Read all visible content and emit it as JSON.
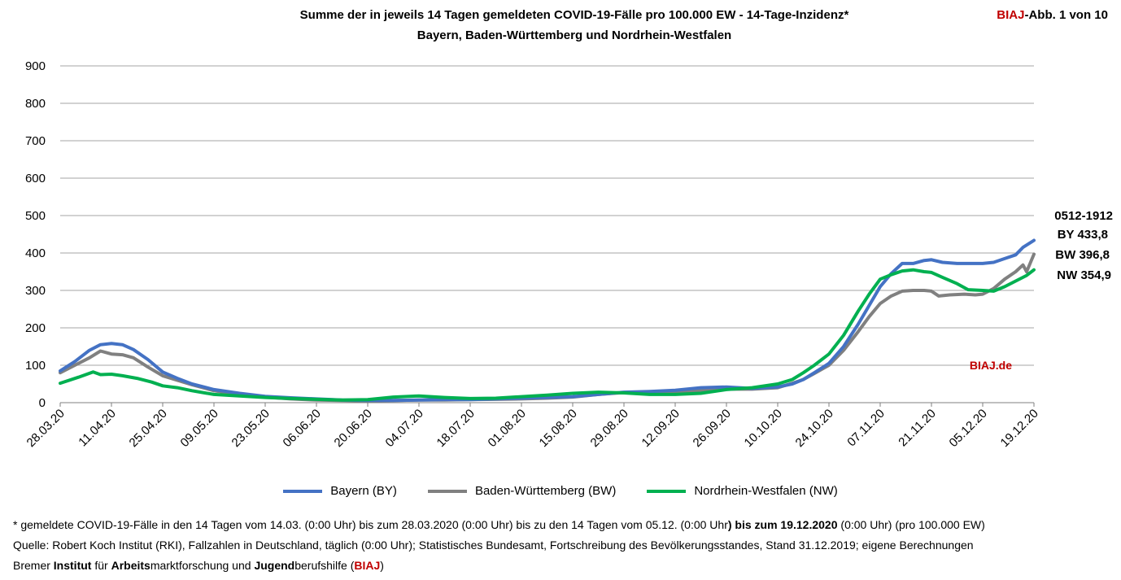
{
  "header": {
    "title_line1": "Summe der in jeweils 14 Tagen gemeldeten COVID-19-Fälle pro 100.000 EW - 14-Tage-Inzidenz*",
    "title_line2": "Bayern, Baden-Württemberg und Nordrhein-Westfalen",
    "fig_brand": "BIAJ",
    "fig_rest": "-Abb. 1 von 10"
  },
  "annotations": {
    "period": "0512-1912",
    "by": "BY 433,8",
    "bw": "BW 396,8",
    "nw": "NW 354,9",
    "watermark": "BIAJ.de"
  },
  "footer": {
    "line1_a": "* gemeldete COVID-19-Fälle in den 14 Tagen vom 14.03. (0:00 Uhr) bis zum 28.03.2020 (0:00 Uhr) bis zu den 14 Tagen vom 05.12. (0:00 Uhr",
    "line1_b": ") bis zum 19.12.2020",
    "line1_c": " (0:00 Uhr) (pro 100.000 EW)",
    "line2": "Quelle: Robert Koch Institut (RKI), Fallzahlen in Deutschland, täglich (0:00 Uhr); Statistisches Bundesamt, Fortschreibung des Bevölkerungsstandes, Stand 31.12.2019; eigene Berechnungen",
    "line3_p1": "Bremer ",
    "line3_b1": "Institut",
    "line3_p2": " für ",
    "line3_b2": "Arbeits",
    "line3_p3": "marktforschung und ",
    "line3_b3": "Jugend",
    "line3_p4": "berufshilfe (",
    "line3_brand": "BIAJ",
    "line3_p5": ")"
  },
  "chart_data": {
    "type": "line",
    "title": "Summe der in jeweils 14 Tagen gemeldeten COVID-19-Fälle pro 100.000 EW - 14-Tage-Inzidenz*",
    "xlabel": "",
    "ylabel": "",
    "ylim": [
      0,
      900
    ],
    "yticks": [
      0,
      100,
      200,
      300,
      400,
      500,
      600,
      700,
      800,
      900
    ],
    "grid": true,
    "legend_position": "bottom",
    "x_start": "28.03.20",
    "x_end": "19.12.20",
    "x_ticks": [
      "28.03.20",
      "11.04.20",
      "25.04.20",
      "09.05.20",
      "23.05.20",
      "06.06.20",
      "20.06.20",
      "04.07.20",
      "18.07.20",
      "01.08.20",
      "15.08.20",
      "29.08.20",
      "12.09.20",
      "26.09.20",
      "10.10.20",
      "24.10.20",
      "07.11.20",
      "21.11.20",
      "05.12.20",
      "19.12.20"
    ],
    "series": [
      {
        "name": "Bayern (BY)",
        "color": "#4472c4",
        "points": [
          [
            "28.03.20",
            85
          ],
          [
            "01.04.20",
            110
          ],
          [
            "05.04.20",
            140
          ],
          [
            "08.04.20",
            155
          ],
          [
            "11.04.20",
            158
          ],
          [
            "14.04.20",
            155
          ],
          [
            "17.04.20",
            142
          ],
          [
            "21.04.20",
            115
          ],
          [
            "25.04.20",
            82
          ],
          [
            "29.04.20",
            65
          ],
          [
            "03.05.20",
            50
          ],
          [
            "09.05.20",
            35
          ],
          [
            "16.05.20",
            25
          ],
          [
            "23.05.20",
            17
          ],
          [
            "30.05.20",
            13
          ],
          [
            "06.06.20",
            10
          ],
          [
            "13.06.20",
            7
          ],
          [
            "20.06.20",
            6
          ],
          [
            "27.06.20",
            6
          ],
          [
            "04.07.20",
            7
          ],
          [
            "11.07.20",
            8
          ],
          [
            "18.07.20",
            8
          ],
          [
            "25.07.20",
            10
          ],
          [
            "01.08.20",
            12
          ],
          [
            "08.08.20",
            14
          ],
          [
            "15.08.20",
            16
          ],
          [
            "22.08.20",
            22
          ],
          [
            "29.08.20",
            28
          ],
          [
            "05.09.20",
            30
          ],
          [
            "12.09.20",
            33
          ],
          [
            "19.09.20",
            40
          ],
          [
            "26.09.20",
            42
          ],
          [
            "03.10.20",
            38
          ],
          [
            "10.10.20",
            42
          ],
          [
            "14.10.20",
            50
          ],
          [
            "17.10.20",
            62
          ],
          [
            "20.10.20",
            80
          ],
          [
            "24.10.20",
            105
          ],
          [
            "28.10.20",
            150
          ],
          [
            "01.11.20",
            210
          ],
          [
            "04.11.20",
            260
          ],
          [
            "07.11.20",
            310
          ],
          [
            "10.11.20",
            345
          ],
          [
            "13.11.20",
            372
          ],
          [
            "16.11.20",
            372
          ],
          [
            "19.11.20",
            380
          ],
          [
            "21.11.20",
            382
          ],
          [
            "24.11.20",
            375
          ],
          [
            "28.11.20",
            372
          ],
          [
            "01.12.20",
            372
          ],
          [
            "05.12.20",
            372
          ],
          [
            "08.12.20",
            375
          ],
          [
            "11.12.20",
            385
          ],
          [
            "14.12.20",
            395
          ],
          [
            "16.12.20",
            415
          ],
          [
            "19.12.20",
            433.8
          ]
        ]
      },
      {
        "name": "Baden-Württemberg (BW)",
        "color": "#808080",
        "points": [
          [
            "28.03.20",
            80
          ],
          [
            "01.04.20",
            100
          ],
          [
            "05.04.20",
            120
          ],
          [
            "08.04.20",
            138
          ],
          [
            "11.04.20",
            130
          ],
          [
            "14.04.20",
            128
          ],
          [
            "17.04.20",
            120
          ],
          [
            "21.04.20",
            95
          ],
          [
            "25.04.20",
            72
          ],
          [
            "29.04.20",
            60
          ],
          [
            "03.05.20",
            48
          ],
          [
            "09.05.20",
            32
          ],
          [
            "16.05.20",
            22
          ],
          [
            "23.05.20",
            15
          ],
          [
            "30.05.20",
            10
          ],
          [
            "06.06.20",
            7
          ],
          [
            "13.06.20",
            6
          ],
          [
            "20.06.20",
            5
          ],
          [
            "27.06.20",
            6
          ],
          [
            "04.07.20",
            7
          ],
          [
            "11.07.20",
            7
          ],
          [
            "18.07.20",
            8
          ],
          [
            "25.07.20",
            9
          ],
          [
            "01.08.20",
            10
          ],
          [
            "08.08.20",
            12
          ],
          [
            "15.08.20",
            15
          ],
          [
            "22.08.20",
            22
          ],
          [
            "29.08.20",
            27
          ],
          [
            "05.09.20",
            29
          ],
          [
            "12.09.20",
            30
          ],
          [
            "19.09.20",
            32
          ],
          [
            "26.09.20",
            36
          ],
          [
            "03.10.20",
            36
          ],
          [
            "10.10.20",
            40
          ],
          [
            "14.10.20",
            52
          ],
          [
            "17.10.20",
            62
          ],
          [
            "20.10.20",
            78
          ],
          [
            "24.10.20",
            100
          ],
          [
            "28.10.20",
            140
          ],
          [
            "01.11.20",
            190
          ],
          [
            "04.11.20",
            230
          ],
          [
            "07.11.20",
            265
          ],
          [
            "10.11.20",
            285
          ],
          [
            "13.11.20",
            298
          ],
          [
            "16.11.20",
            300
          ],
          [
            "19.11.20",
            300
          ],
          [
            "21.11.20",
            298
          ],
          [
            "23.11.20",
            285
          ],
          [
            "26.11.20",
            288
          ],
          [
            "30.11.20",
            290
          ],
          [
            "03.12.20",
            288
          ],
          [
            "05.12.20",
            290
          ],
          [
            "08.12.20",
            305
          ],
          [
            "11.12.20",
            330
          ],
          [
            "14.12.20",
            350
          ],
          [
            "16.12.20",
            368
          ],
          [
            "17.12.20",
            350
          ],
          [
            "19.12.20",
            396.8
          ]
        ]
      },
      {
        "name": "Nordrhein-Westfalen (NW)",
        "color": "#00b050",
        "points": [
          [
            "28.03.20",
            52
          ],
          [
            "02.04.20",
            68
          ],
          [
            "06.04.20",
            82
          ],
          [
            "08.04.20",
            75
          ],
          [
            "11.04.20",
            76
          ],
          [
            "14.04.20",
            72
          ],
          [
            "18.04.20",
            65
          ],
          [
            "22.04.20",
            55
          ],
          [
            "25.04.20",
            45
          ],
          [
            "29.04.20",
            40
          ],
          [
            "03.05.20",
            32
          ],
          [
            "09.05.20",
            22
          ],
          [
            "16.05.20",
            18
          ],
          [
            "23.05.20",
            14
          ],
          [
            "30.05.20",
            11
          ],
          [
            "06.06.20",
            9
          ],
          [
            "13.06.20",
            7
          ],
          [
            "20.06.20",
            8
          ],
          [
            "27.06.20",
            15
          ],
          [
            "04.07.20",
            18
          ],
          [
            "11.07.20",
            14
          ],
          [
            "18.07.20",
            11
          ],
          [
            "25.07.20",
            12
          ],
          [
            "01.08.20",
            16
          ],
          [
            "08.08.20",
            20
          ],
          [
            "15.08.20",
            25
          ],
          [
            "22.08.20",
            28
          ],
          [
            "29.08.20",
            26
          ],
          [
            "05.09.20",
            22
          ],
          [
            "12.09.20",
            22
          ],
          [
            "19.09.20",
            25
          ],
          [
            "26.09.20",
            35
          ],
          [
            "03.10.20",
            40
          ],
          [
            "10.10.20",
            50
          ],
          [
            "14.10.20",
            62
          ],
          [
            "17.10.20",
            80
          ],
          [
            "20.10.20",
            100
          ],
          [
            "24.10.20",
            130
          ],
          [
            "28.10.20",
            180
          ],
          [
            "01.11.20",
            245
          ],
          [
            "04.11.20",
            290
          ],
          [
            "07.11.20",
            330
          ],
          [
            "10.11.20",
            342
          ],
          [
            "13.11.20",
            352
          ],
          [
            "16.11.20",
            355
          ],
          [
            "19.11.20",
            350
          ],
          [
            "21.11.20",
            348
          ],
          [
            "24.11.20",
            335
          ],
          [
            "28.11.20",
            318
          ],
          [
            "01.12.20",
            302
          ],
          [
            "05.12.20",
            300
          ],
          [
            "08.12.20",
            298
          ],
          [
            "11.12.20",
            310
          ],
          [
            "14.12.20",
            325
          ],
          [
            "17.12.20",
            340
          ],
          [
            "19.12.20",
            354.9
          ]
        ]
      }
    ]
  }
}
